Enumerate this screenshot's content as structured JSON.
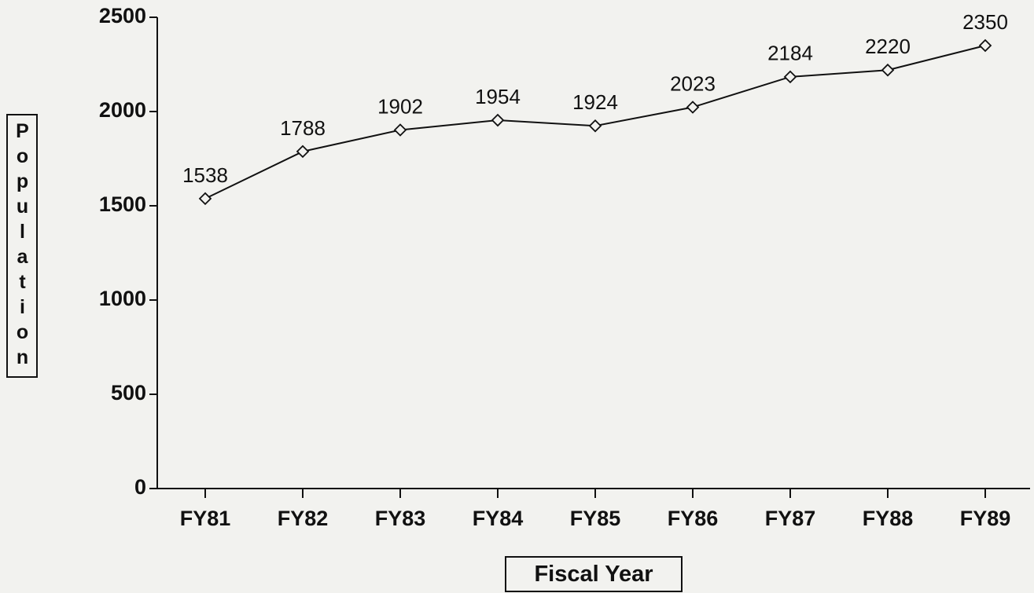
{
  "chart_data": {
    "type": "line",
    "x_label": "Fiscal Year",
    "y_label": "Population",
    "categories": [
      "FY81",
      "FY82",
      "FY83",
      "FY84",
      "FY85",
      "FY86",
      "FY87",
      "FY88",
      "FY89"
    ],
    "values": [
      1538,
      1788,
      1902,
      1954,
      1924,
      2023,
      2184,
      2220,
      2350
    ],
    "color": "#111111",
    "marker": "diamond",
    "ylim": [
      0,
      2500
    ],
    "yticks": [
      0,
      500,
      1000,
      1500,
      2000,
      2500
    ]
  }
}
